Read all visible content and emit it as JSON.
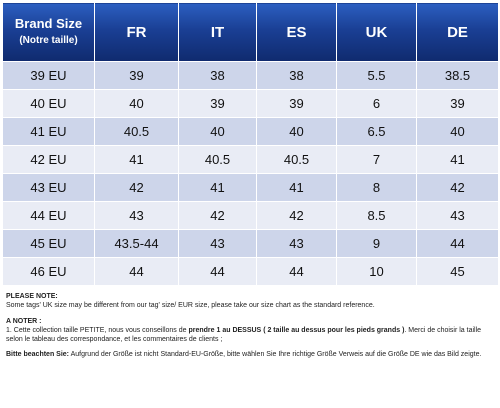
{
  "header": {
    "brand_label": "Brand Size",
    "brand_sub": "(Notre taille)",
    "columns": [
      "FR",
      "IT",
      "ES",
      "UK",
      "DE"
    ]
  },
  "rows": [
    {
      "eu": "39 EU",
      "fr": "39",
      "it": "38",
      "es": "38",
      "uk": "5.5",
      "de": "38.5"
    },
    {
      "eu": "40 EU",
      "fr": "40",
      "it": "39",
      "es": "39",
      "uk": "6",
      "de": "39"
    },
    {
      "eu": "41 EU",
      "fr": "40.5",
      "it": "40",
      "es": "40",
      "uk": "6.5",
      "de": "40"
    },
    {
      "eu": "42 EU",
      "fr": "41",
      "it": "40.5",
      "es": "40.5",
      "uk": "7",
      "de": "41"
    },
    {
      "eu": "43 EU",
      "fr": "42",
      "it": "41",
      "es": "41",
      "uk": "8",
      "de": "42"
    },
    {
      "eu": "44 EU",
      "fr": "43",
      "it": "42",
      "es": "42",
      "uk": "8.5",
      "de": "43"
    },
    {
      "eu": "45 EU",
      "fr": "43.5-44",
      "it": "43",
      "es": "43",
      "uk": "9",
      "de": "44"
    },
    {
      "eu": "46 EU",
      "fr": "44",
      "it": "44",
      "es": "44",
      "uk": "10",
      "de": "45"
    }
  ],
  "notes": {
    "please_note_title": "PLEASE NOTE:",
    "please_note_text": "Some tags' UK size  may be different from our tag' size/ EUR size, please take our size chart as the standard reference.",
    "a_noter_title": "A NOTER :",
    "a_noter_part1": "1. Cette collection taille PETITE, nous vous conseillons de ",
    "a_noter_bold1": "prendre 1 au DESSUS",
    "a_noter_part2": " ",
    "a_noter_bold2": "( 2 taille au dessus pour les pieds grands )",
    "a_noter_part3": ".   Merci de choisir la taille selon le tableau des correspondance, et  les commentaires de clients ;",
    "bitte_title": "Bitte beachten Sie:",
    "bitte_text": " Aufgrund der Größe ist nicht Standard-EU-Größe, bitte wählen Sie Ihre richtige Größe Verweis auf die Größe DE wie das Bild zeigte."
  },
  "colors": {
    "header_blue": "#1a3f94",
    "row_dark": "#cdd5ea",
    "row_light": "#e9ecf5"
  }
}
